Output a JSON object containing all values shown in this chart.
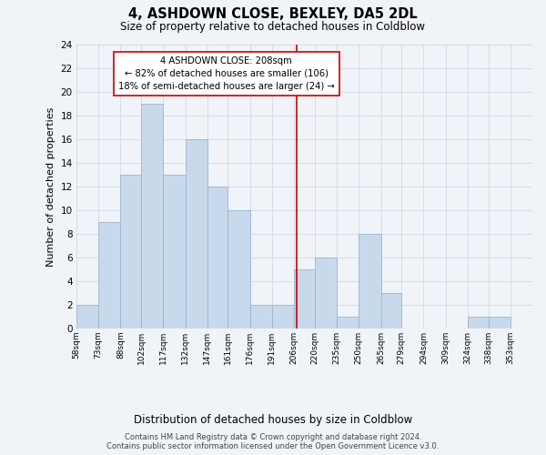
{
  "title": "4, ASHDOWN CLOSE, BEXLEY, DA5 2DL",
  "subtitle": "Size of property relative to detached houses in Coldblow",
  "xlabel": "Distribution of detached houses by size in Coldblow",
  "ylabel": "Number of detached properties",
  "bin_labels": [
    "58sqm",
    "73sqm",
    "88sqm",
    "102sqm",
    "117sqm",
    "132sqm",
    "147sqm",
    "161sqm",
    "176sqm",
    "191sqm",
    "206sqm",
    "220sqm",
    "235sqm",
    "250sqm",
    "265sqm",
    "279sqm",
    "294sqm",
    "309sqm",
    "324sqm",
    "338sqm",
    "353sqm"
  ],
  "bin_edges": [
    58,
    73,
    88,
    102,
    117,
    132,
    147,
    161,
    176,
    191,
    206,
    220,
    235,
    250,
    265,
    279,
    294,
    309,
    324,
    338,
    353,
    368
  ],
  "counts": [
    2,
    9,
    13,
    19,
    13,
    16,
    12,
    10,
    2,
    2,
    5,
    6,
    1,
    8,
    3,
    0,
    0,
    0,
    1,
    1,
    0
  ],
  "bar_facecolor": "#c8d9ec",
  "bar_edgecolor": "#9ab5d0",
  "grid_color": "#d0d8e4",
  "vline_x": 208,
  "vline_color": "#cc0000",
  "annotation_box_edge": "#cc0000",
  "annotation_text_line1": "4 ASHDOWN CLOSE: 208sqm",
  "annotation_text_line2": "← 82% of detached houses are smaller (106)",
  "annotation_text_line3": "18% of semi-detached houses are larger (24) →",
  "ylim": [
    0,
    24
  ],
  "yticks": [
    0,
    2,
    4,
    6,
    8,
    10,
    12,
    14,
    16,
    18,
    20,
    22,
    24
  ],
  "footer_line1": "Contains HM Land Registry data © Crown copyright and database right 2024.",
  "footer_line2": "Contains public sector information licensed under the Open Government Licence v3.0.",
  "background_color": "#f0f4f8"
}
